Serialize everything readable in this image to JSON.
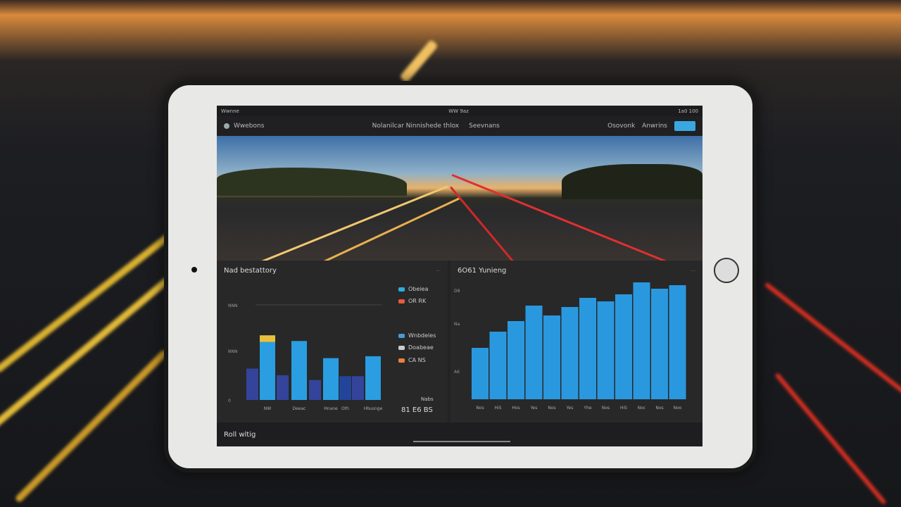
{
  "status_bar": {
    "left": "Wwnne",
    "center": "WW 9az",
    "right": "1a0 100"
  },
  "nav": {
    "brand": "Wwebons",
    "links": [
      "Nolanilcar Ninnishede thlox",
      "Seevnans"
    ],
    "right_links": [
      "Osovonk",
      "Anwrins"
    ]
  },
  "left_panel": {
    "title": "Nad bestattory",
    "menu": "...",
    "legend": [
      {
        "label": "Obeiea",
        "color": "#2ab0d8"
      },
      {
        "label": "OR RK",
        "color": "#e85a3a"
      },
      {
        "label": "Wnbdeles",
        "color": "#4a9ad0"
      },
      {
        "label": "Doabeae",
        "color": "#cccccc",
        "prefix": "B7"
      },
      {
        "label": "CA NS",
        "color": "#e8843a"
      }
    ],
    "summary_label": "Nabs",
    "summary_value": "81 E6 BS"
  },
  "right_panel": {
    "title": "6O61 Yunieng",
    "menu": "..."
  },
  "bottom": {
    "label": "Roll wltig"
  },
  "chart_data": [
    {
      "type": "bar",
      "title": "Nad bestattory",
      "ylim": [
        0,
        100
      ],
      "yticks": [
        {
          "v": 0,
          "label": "0"
        },
        {
          "v": 52,
          "label": "NNN"
        },
        {
          "v": 100,
          "label": "NNN"
        }
      ],
      "bars": [
        {
          "value": 33,
          "color": "#34449a"
        },
        {
          "value": 61,
          "cap": 7,
          "color": "#2a9ee0",
          "cap_color": "#e8c040",
          "label": "NW"
        },
        {
          "value": 26,
          "color": "#34449a"
        },
        {
          "value": 62,
          "color": "#2a9ee0",
          "label": "Deeac"
        },
        {
          "value": 21,
          "color": "#34449a"
        },
        {
          "value": 44,
          "color": "#2a9ee0",
          "label": "Hnane"
        },
        {
          "value": 25,
          "color": "#22449a",
          "label": "Oth"
        },
        {
          "value": 25,
          "color": "#34449a"
        },
        {
          "value": 46,
          "color": "#2a9ee0",
          "label": "Hbusnge"
        }
      ]
    },
    {
      "type": "bar",
      "title": "6O61 Yunieng",
      "ylim": [
        0,
        175
      ],
      "yticks": [
        {
          "v": 40,
          "label": "A6"
        },
        {
          "v": 108,
          "label": "Na"
        },
        {
          "v": 155,
          "label": "D8"
        }
      ],
      "categories": [
        "Nos",
        "HiS",
        "Hos",
        "Yes",
        "Nos",
        "Yes",
        "Yhe",
        "Nos",
        "HiS",
        "Noc",
        "Nos",
        "Noo"
      ],
      "values": [
        73,
        96,
        111,
        133,
        119,
        131,
        144,
        139,
        149,
        166,
        157,
        162
      ],
      "color": "#2a98de"
    }
  ]
}
